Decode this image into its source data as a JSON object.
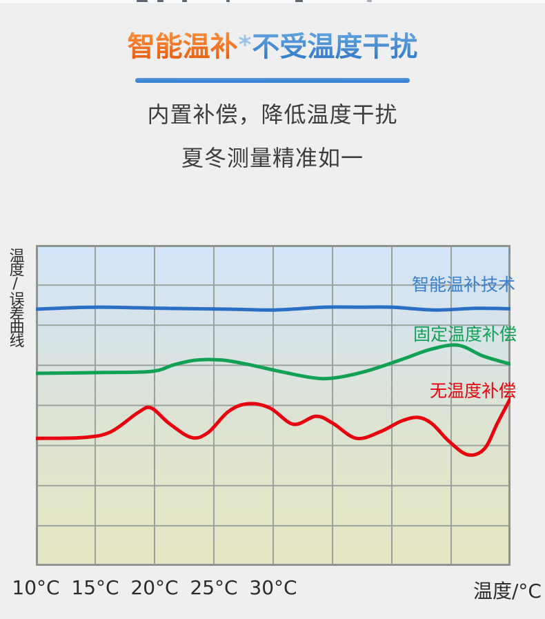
{
  "header": {
    "title_highlight": "智能温补",
    "title_star": "*",
    "title_rest": "不受温度干扰",
    "subtitle_line1": "内置补偿，降低温度干扰",
    "subtitle_line2": "夏冬测量精准如一",
    "colors": {
      "highlight_orange": "#ee6412",
      "title_blue": "#3f88d4",
      "underline_blue": "#2e7cd0",
      "subtitle_gray": "#3d3d3d"
    }
  },
  "chart_data": {
    "type": "line",
    "title": "",
    "y_axis_label": "温度/误差曲线",
    "x_axis_unit_label": "温度/°C",
    "x_tick_labels": [
      "10°C",
      "15°C",
      "20°C",
      "25°C",
      "30°C"
    ],
    "x_tick_values": [
      10,
      15,
      20,
      25,
      30
    ],
    "x_range": [
      10,
      50
    ],
    "y_range": [
      0,
      8
    ],
    "grid": {
      "columns": 8,
      "rows": 8,
      "line_color": "#9aa29c",
      "border_color": "#8f948f",
      "on": true
    },
    "plot_background_gradient": [
      "#d3e5f9",
      "#d6e3ea",
      "#dce3d6",
      "#e2e5c9",
      "#e5e6c3"
    ],
    "legend_position": "labels-inside-right",
    "series": [
      {
        "name": "智能温补技术",
        "color": "#2a6fc4",
        "label_color": "#3b7fd0",
        "points": [
          [
            10,
            6.4
          ],
          [
            15.1,
            6.45
          ],
          [
            20.9,
            6.42
          ],
          [
            26.2,
            6.4
          ],
          [
            30.2,
            6.38
          ],
          [
            34.3,
            6.45
          ],
          [
            37.2,
            6.45
          ],
          [
            40.0,
            6.45
          ],
          [
            43.6,
            6.38
          ],
          [
            47.1,
            6.42
          ],
          [
            50,
            6.41
          ]
        ]
      },
      {
        "name": "固定温度补偿",
        "color": "#12a055",
        "label_color": "#12a055",
        "points": [
          [
            10,
            4.8
          ],
          [
            15.7,
            4.82
          ],
          [
            19.8,
            4.85
          ],
          [
            21.6,
            5.01
          ],
          [
            23.5,
            5.13
          ],
          [
            25.7,
            5.13
          ],
          [
            27.9,
            5.02
          ],
          [
            30.2,
            4.87
          ],
          [
            33.1,
            4.7
          ],
          [
            35.0,
            4.68
          ],
          [
            37.8,
            4.85
          ],
          [
            40.7,
            5.13
          ],
          [
            43.3,
            5.4
          ],
          [
            45.6,
            5.5
          ],
          [
            47.7,
            5.23
          ],
          [
            50,
            5.03
          ]
        ]
      },
      {
        "name": "无温度补偿",
        "color": "#e8020f",
        "label_color": "#e8020f",
        "points": [
          [
            10,
            3.18
          ],
          [
            14.0,
            3.2
          ],
          [
            16.3,
            3.34
          ],
          [
            18.6,
            3.82
          ],
          [
            19.7,
            3.94
          ],
          [
            21.2,
            3.56
          ],
          [
            23.1,
            3.2
          ],
          [
            24.5,
            3.32
          ],
          [
            26.2,
            3.84
          ],
          [
            27.8,
            4.04
          ],
          [
            29.7,
            3.94
          ],
          [
            31.7,
            3.53
          ],
          [
            33.6,
            3.73
          ],
          [
            35.0,
            3.56
          ],
          [
            37.0,
            3.18
          ],
          [
            39.0,
            3.34
          ],
          [
            40.8,
            3.61
          ],
          [
            42.2,
            3.7
          ],
          [
            43.4,
            3.54
          ],
          [
            44.8,
            3.11
          ],
          [
            46.4,
            2.77
          ],
          [
            47.8,
            2.92
          ],
          [
            48.9,
            3.56
          ],
          [
            50,
            4.18
          ]
        ]
      }
    ]
  }
}
